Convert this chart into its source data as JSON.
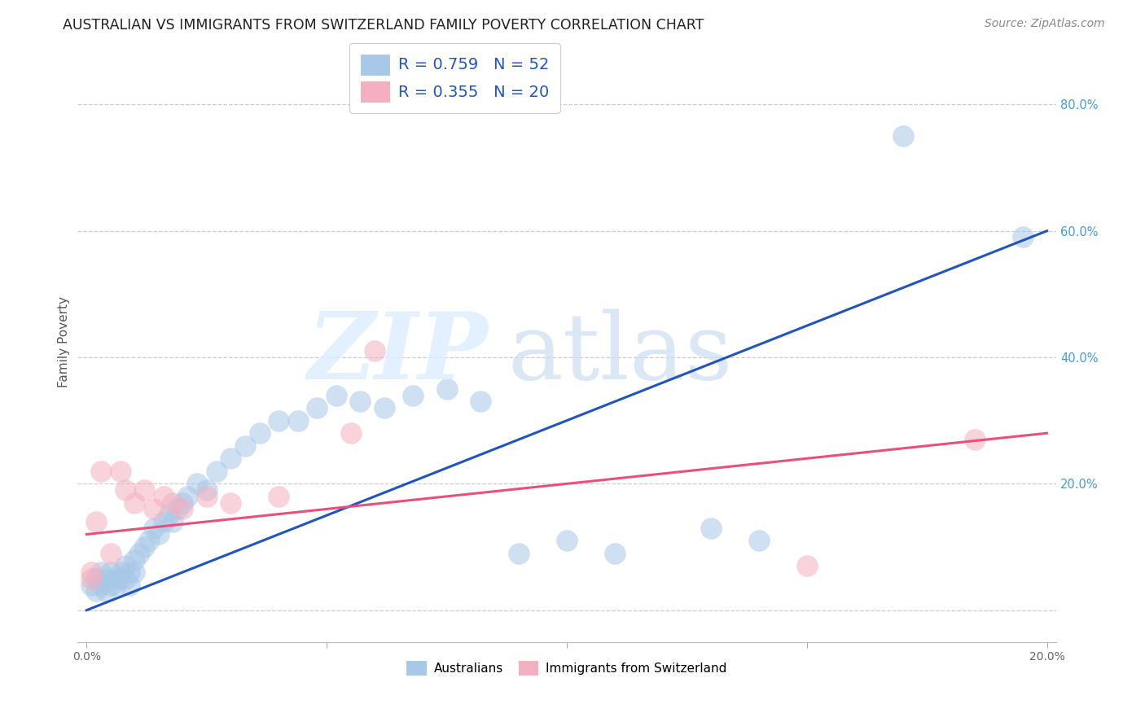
{
  "title": "AUSTRALIAN VS IMMIGRANTS FROM SWITZERLAND FAMILY POVERTY CORRELATION CHART",
  "source": "Source: ZipAtlas.com",
  "ylabel": "Family Poverty",
  "xlim": [
    -0.002,
    0.202
  ],
  "ylim": [
    -0.05,
    0.9
  ],
  "ytick_vals": [
    0.0,
    0.2,
    0.4,
    0.6,
    0.8
  ],
  "ytick_labels": [
    "",
    "20.0%",
    "40.0%",
    "60.0%",
    "80.0%"
  ],
  "xtick_vals": [
    0.0,
    0.05,
    0.1,
    0.15,
    0.2
  ],
  "xtick_labels": [
    "0.0%",
    "",
    "",
    "",
    "20.0%"
  ],
  "blue_fill": "#a8c8e8",
  "pink_fill": "#f4b0c0",
  "line_blue": "#2255bb",
  "line_pink": "#e8507a",
  "grid_color": "#cccccc",
  "right_label_color": "#4499dd",
  "title_color": "#222222",
  "source_color": "#888888",
  "legend_r1": "R = 0.759",
  "legend_n1": "N = 52",
  "legend_r2": "R = 0.355",
  "legend_n2": "N = 20",
  "legend_text_color": "#2255bb",
  "aus_x": [
    0.001,
    0.002,
    0.002,
    0.003,
    0.003,
    0.004,
    0.004,
    0.005,
    0.005,
    0.006,
    0.006,
    0.007,
    0.007,
    0.008,
    0.008,
    0.009,
    0.009,
    0.01,
    0.01,
    0.011,
    0.012,
    0.013,
    0.014,
    0.015,
    0.016,
    0.017,
    0.018,
    0.019,
    0.02,
    0.021,
    0.023,
    0.025,
    0.027,
    0.03,
    0.033,
    0.036,
    0.04,
    0.044,
    0.048,
    0.052,
    0.057,
    0.062,
    0.068,
    0.075,
    0.082,
    0.09,
    0.1,
    0.11,
    0.13,
    0.14,
    0.17,
    0.195
  ],
  "aus_y": [
    0.04,
    0.05,
    0.03,
    0.06,
    0.04,
    0.05,
    0.03,
    0.06,
    0.04,
    0.05,
    0.04,
    0.06,
    0.05,
    0.07,
    0.05,
    0.06,
    0.04,
    0.08,
    0.06,
    0.09,
    0.1,
    0.11,
    0.13,
    0.12,
    0.14,
    0.15,
    0.14,
    0.16,
    0.17,
    0.18,
    0.2,
    0.19,
    0.22,
    0.24,
    0.26,
    0.28,
    0.3,
    0.3,
    0.32,
    0.34,
    0.33,
    0.32,
    0.34,
    0.35,
    0.33,
    0.09,
    0.11,
    0.09,
    0.13,
    0.11,
    0.75,
    0.59
  ],
  "swiss_x": [
    0.001,
    0.001,
    0.002,
    0.003,
    0.005,
    0.007,
    0.008,
    0.01,
    0.012,
    0.014,
    0.016,
    0.018,
    0.02,
    0.025,
    0.03,
    0.04,
    0.055,
    0.06,
    0.15,
    0.185
  ],
  "swiss_y": [
    0.06,
    0.05,
    0.14,
    0.22,
    0.09,
    0.22,
    0.19,
    0.17,
    0.19,
    0.16,
    0.18,
    0.17,
    0.16,
    0.18,
    0.17,
    0.18,
    0.28,
    0.41,
    0.07,
    0.27
  ],
  "blue_line_x0": 0.0,
  "blue_line_y0": 0.0,
  "blue_line_x1": 0.2,
  "blue_line_y1": 0.6,
  "pink_line_x0": 0.0,
  "pink_line_y0": 0.12,
  "pink_line_x1": 0.2,
  "pink_line_y1": 0.28
}
